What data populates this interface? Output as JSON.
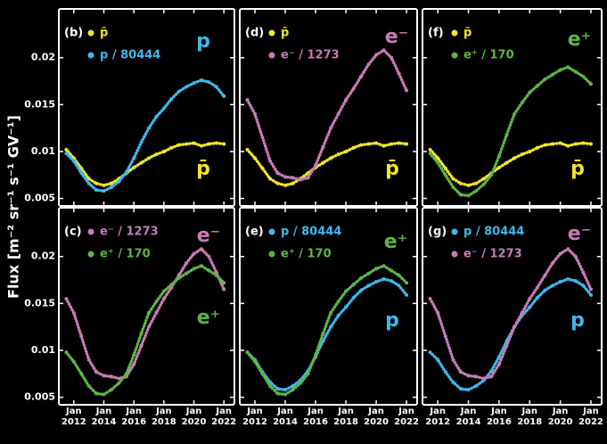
{
  "ylabel": "Flux [m⁻² sr⁻¹ s⁻¹ GV⁻¹]",
  "chart_data": [
    {
      "type": "line",
      "label": "(b)",
      "x": [
        2011.5,
        2012,
        2012.5,
        2013,
        2013.5,
        2014,
        2014.5,
        2015,
        2015.5,
        2016,
        2016.5,
        2017,
        2017.5,
        2018,
        2018.5,
        2019,
        2019.5,
        2020,
        2020.5,
        2021,
        2021.5,
        2022
      ],
      "series": [
        {
          "name": "p̄",
          "color": "#f2e52c",
          "values": [
            0.0102,
            0.0093,
            0.0082,
            0.0071,
            0.0066,
            0.0064,
            0.0066,
            0.0071,
            0.0077,
            0.0083,
            0.0088,
            0.0093,
            0.0097,
            0.01,
            0.0104,
            0.0107,
            0.0108,
            0.0109,
            0.0106,
            0.0108,
            0.0109,
            0.0108
          ]
        },
        {
          "name": "p / 80444",
          "color": "#3db8ec",
          "values": [
            0.0098,
            0.009,
            0.0077,
            0.0066,
            0.0059,
            0.0058,
            0.0062,
            0.0068,
            0.0078,
            0.0093,
            0.011,
            0.0125,
            0.0137,
            0.0146,
            0.0156,
            0.0164,
            0.0169,
            0.0173,
            0.0176,
            0.0174,
            0.0169,
            0.0159
          ]
        }
      ],
      "annotations": [
        {
          "text": "p",
          "color": "#3db8ec"
        },
        {
          "text": "p̄",
          "color": "#f2e52c"
        }
      ],
      "xlim": [
        2011.0,
        2022.7
      ],
      "xticks": [
        {
          "value": 2012,
          "label": "Jan\n2012"
        },
        {
          "value": 2014,
          "label": "Jan\n2014"
        },
        {
          "value": 2016,
          "label": "Jan\n2016"
        },
        {
          "value": 2018,
          "label": "Jan\n2018"
        },
        {
          "value": 2020,
          "label": "Jan\n2020"
        },
        {
          "value": 2022,
          "label": "Jan\n2022"
        }
      ],
      "ylim": [
        0.0042,
        0.0252
      ],
      "yticks": [
        0.005,
        0.01,
        0.015,
        0.02
      ],
      "x_tick_labels": false,
      "y_tick_labels": true
    },
    {
      "type": "line",
      "label": "(d)",
      "x": [
        2011.5,
        2012,
        2012.5,
        2013,
        2013.5,
        2014,
        2014.5,
        2015,
        2015.5,
        2016,
        2016.5,
        2017,
        2017.5,
        2018,
        2018.5,
        2019,
        2019.5,
        2020,
        2020.5,
        2021,
        2021.5,
        2022
      ],
      "series": [
        {
          "name": "p̄",
          "color": "#f2e52c",
          "values": [
            0.0102,
            0.0093,
            0.0082,
            0.0071,
            0.0066,
            0.0064,
            0.0066,
            0.0071,
            0.0077,
            0.0083,
            0.0088,
            0.0093,
            0.0097,
            0.01,
            0.0104,
            0.0107,
            0.0108,
            0.0109,
            0.0106,
            0.0108,
            0.0109,
            0.0108
          ]
        },
        {
          "name": "e⁻ / 1273",
          "color": "#c97bb6",
          "values": [
            0.0155,
            0.014,
            0.0115,
            0.009,
            0.0077,
            0.0073,
            0.0072,
            0.007,
            0.0072,
            0.0085,
            0.0105,
            0.0125,
            0.014,
            0.0155,
            0.0167,
            0.018,
            0.0193,
            0.0203,
            0.0208,
            0.02,
            0.0183,
            0.0165
          ]
        }
      ],
      "annotations": [
        {
          "text": "e⁻",
          "color": "#c97bb6"
        },
        {
          "text": "p̄",
          "color": "#f2e52c"
        }
      ],
      "xlim": [
        2011.0,
        2022.7
      ],
      "xticks": [
        {
          "value": 2012,
          "label": "Jan\n2012"
        },
        {
          "value": 2014,
          "label": "Jan\n2014"
        },
        {
          "value": 2016,
          "label": "Jan\n2016"
        },
        {
          "value": 2018,
          "label": "Jan\n2018"
        },
        {
          "value": 2020,
          "label": "Jan\n2020"
        },
        {
          "value": 2022,
          "label": "Jan\n2022"
        }
      ],
      "ylim": [
        0.0042,
        0.0252
      ],
      "yticks": [
        0.005,
        0.01,
        0.015,
        0.02
      ],
      "x_tick_labels": false,
      "y_tick_labels": false
    },
    {
      "type": "line",
      "label": "(f)",
      "x": [
        2011.5,
        2012,
        2012.5,
        2013,
        2013.5,
        2014,
        2014.5,
        2015,
        2015.5,
        2016,
        2016.5,
        2017,
        2017.5,
        2018,
        2018.5,
        2019,
        2019.5,
        2020,
        2020.5,
        2021,
        2021.5,
        2022
      ],
      "series": [
        {
          "name": "p̄",
          "color": "#f2e52c",
          "values": [
            0.0102,
            0.0093,
            0.0082,
            0.0071,
            0.0066,
            0.0064,
            0.0066,
            0.0071,
            0.0077,
            0.0083,
            0.0088,
            0.0093,
            0.0097,
            0.01,
            0.0104,
            0.0107,
            0.0108,
            0.0109,
            0.0106,
            0.0108,
            0.0109,
            0.0108
          ]
        },
        {
          "name": "e⁺ / 170",
          "color": "#5db545",
          "values": [
            0.0098,
            0.0088,
            0.0075,
            0.0062,
            0.0054,
            0.0053,
            0.0058,
            0.0065,
            0.0075,
            0.0095,
            0.0118,
            0.014,
            0.0152,
            0.0163,
            0.017,
            0.0177,
            0.0182,
            0.0187,
            0.019,
            0.0185,
            0.018,
            0.0172
          ]
        }
      ],
      "annotations": [
        {
          "text": "e⁺",
          "color": "#5db545"
        },
        {
          "text": "p̄",
          "color": "#f2e52c"
        }
      ],
      "xlim": [
        2011.0,
        2022.7
      ],
      "xticks": [
        {
          "value": 2012,
          "label": "Jan\n2012"
        },
        {
          "value": 2014,
          "label": "Jan\n2014"
        },
        {
          "value": 2016,
          "label": "Jan\n2016"
        },
        {
          "value": 2018,
          "label": "Jan\n2018"
        },
        {
          "value": 2020,
          "label": "Jan\n2020"
        },
        {
          "value": 2022,
          "label": "Jan\n2022"
        }
      ],
      "ylim": [
        0.0042,
        0.0252
      ],
      "yticks": [
        0.005,
        0.01,
        0.015,
        0.02
      ],
      "x_tick_labels": false,
      "y_tick_labels": false
    },
    {
      "type": "line",
      "label": "(c)",
      "x": [
        2011.5,
        2012,
        2012.5,
        2013,
        2013.5,
        2014,
        2014.5,
        2015,
        2015.5,
        2016,
        2016.5,
        2017,
        2017.5,
        2018,
        2018.5,
        2019,
        2019.5,
        2020,
        2020.5,
        2021,
        2021.5,
        2022
      ],
      "series": [
        {
          "name": "e⁻ / 1273",
          "color": "#c97bb6",
          "values": [
            0.0155,
            0.014,
            0.0115,
            0.009,
            0.0077,
            0.0073,
            0.0072,
            0.007,
            0.0072,
            0.0085,
            0.0105,
            0.0125,
            0.014,
            0.0155,
            0.0167,
            0.018,
            0.0193,
            0.0203,
            0.0208,
            0.02,
            0.0183,
            0.0165
          ]
        },
        {
          "name": "e⁺ / 170",
          "color": "#5db545",
          "values": [
            0.0098,
            0.0088,
            0.0075,
            0.0062,
            0.0054,
            0.0053,
            0.0058,
            0.0065,
            0.0075,
            0.0095,
            0.0118,
            0.014,
            0.0152,
            0.0163,
            0.017,
            0.0177,
            0.0182,
            0.0187,
            0.019,
            0.0185,
            0.018,
            0.0172
          ]
        }
      ],
      "annotations": [
        {
          "text": "e⁻",
          "color": "#c97bb6"
        },
        {
          "text": "e⁺",
          "color": "#5db545"
        }
      ],
      "xlim": [
        2011.0,
        2022.7
      ],
      "xticks": [
        {
          "value": 2012,
          "label": "Jan\n2012"
        },
        {
          "value": 2014,
          "label": "Jan\n2014"
        },
        {
          "value": 2016,
          "label": "Jan\n2016"
        },
        {
          "value": 2018,
          "label": "Jan\n2018"
        },
        {
          "value": 2020,
          "label": "Jan\n2020"
        },
        {
          "value": 2022,
          "label": "Jan\n2022"
        }
      ],
      "ylim": [
        0.0042,
        0.0252
      ],
      "yticks": [
        0.005,
        0.01,
        0.015,
        0.02
      ],
      "x_tick_labels": true,
      "y_tick_labels": true
    },
    {
      "type": "line",
      "label": "(e)",
      "x": [
        2011.5,
        2012,
        2012.5,
        2013,
        2013.5,
        2014,
        2014.5,
        2015,
        2015.5,
        2016,
        2016.5,
        2017,
        2017.5,
        2018,
        2018.5,
        2019,
        2019.5,
        2020,
        2020.5,
        2021,
        2021.5,
        2022
      ],
      "series": [
        {
          "name": "p / 80444",
          "color": "#3db8ec",
          "values": [
            0.0098,
            0.009,
            0.0077,
            0.0066,
            0.0059,
            0.0058,
            0.0062,
            0.0068,
            0.0078,
            0.0093,
            0.011,
            0.0125,
            0.0137,
            0.0146,
            0.0156,
            0.0164,
            0.0169,
            0.0173,
            0.0176,
            0.0174,
            0.0169,
            0.0159
          ]
        },
        {
          "name": "e⁺ / 170",
          "color": "#5db545",
          "values": [
            0.0098,
            0.0088,
            0.0075,
            0.0062,
            0.0054,
            0.0053,
            0.0058,
            0.0065,
            0.0075,
            0.0095,
            0.0118,
            0.014,
            0.0152,
            0.0163,
            0.017,
            0.0177,
            0.0182,
            0.0187,
            0.019,
            0.0185,
            0.018,
            0.0172
          ]
        }
      ],
      "annotations": [
        {
          "text": "e⁺",
          "color": "#5db545"
        },
        {
          "text": "p",
          "color": "#3db8ec"
        }
      ],
      "xlim": [
        2011.0,
        2022.7
      ],
      "xticks": [
        {
          "value": 2012,
          "label": "Jan\n2012"
        },
        {
          "value": 2014,
          "label": "Jan\n2014"
        },
        {
          "value": 2016,
          "label": "Jan\n2016"
        },
        {
          "value": 2018,
          "label": "Jan\n2018"
        },
        {
          "value": 2020,
          "label": "Jan\n2020"
        },
        {
          "value": 2022,
          "label": "Jan\n2022"
        }
      ],
      "ylim": [
        0.0042,
        0.0252
      ],
      "yticks": [
        0.005,
        0.01,
        0.015,
        0.02
      ],
      "x_tick_labels": true,
      "y_tick_labels": false
    },
    {
      "type": "line",
      "label": "(g)",
      "x": [
        2011.5,
        2012,
        2012.5,
        2013,
        2013.5,
        2014,
        2014.5,
        2015,
        2015.5,
        2016,
        2016.5,
        2017,
        2017.5,
        2018,
        2018.5,
        2019,
        2019.5,
        2020,
        2020.5,
        2021,
        2021.5,
        2022
      ],
      "series": [
        {
          "name": "p / 80444",
          "color": "#3db8ec",
          "values": [
            0.0098,
            0.009,
            0.0077,
            0.0066,
            0.0059,
            0.0058,
            0.0062,
            0.0068,
            0.0078,
            0.0093,
            0.011,
            0.0125,
            0.0137,
            0.0146,
            0.0156,
            0.0164,
            0.0169,
            0.0173,
            0.0176,
            0.0174,
            0.0169,
            0.0159
          ]
        },
        {
          "name": "e⁻ / 1273",
          "color": "#c97bb6",
          "values": [
            0.0155,
            0.014,
            0.0115,
            0.009,
            0.0077,
            0.0073,
            0.0072,
            0.007,
            0.0072,
            0.0085,
            0.0105,
            0.0125,
            0.014,
            0.0155,
            0.0167,
            0.018,
            0.0193,
            0.0203,
            0.0208,
            0.02,
            0.0183,
            0.0165
          ]
        }
      ],
      "annotations": [
        {
          "text": "e⁻",
          "color": "#c97bb6"
        },
        {
          "text": "p",
          "color": "#3db8ec"
        }
      ],
      "xlim": [
        2011.0,
        2022.7
      ],
      "xticks": [
        {
          "value": 2012,
          "label": "Jan\n2012"
        },
        {
          "value": 2014,
          "label": "Jan\n2014"
        },
        {
          "value": 2016,
          "label": "Jan\n2016"
        },
        {
          "value": 2018,
          "label": "Jan\n2018"
        },
        {
          "value": 2020,
          "label": "Jan\n2020"
        },
        {
          "value": 2022,
          "label": "Jan\n2022"
        }
      ],
      "ylim": [
        0.0042,
        0.0252
      ],
      "yticks": [
        0.005,
        0.01,
        0.015,
        0.02
      ],
      "x_tick_labels": true,
      "y_tick_labels": false
    }
  ]
}
